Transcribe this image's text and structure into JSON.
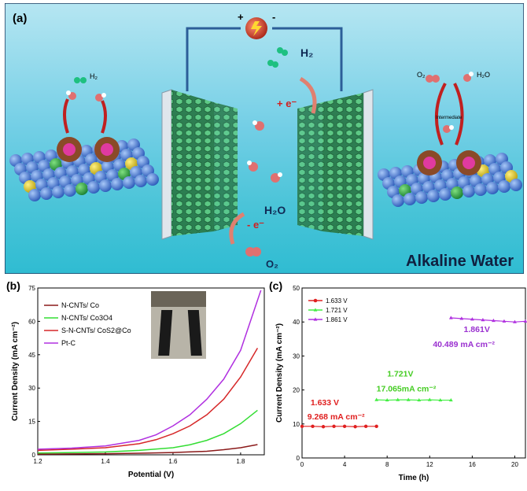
{
  "panel_a": {
    "label": "(a)",
    "battery_plus": "+",
    "battery_minus": "-",
    "left_h2": "H₂",
    "right_o2": "O₂",
    "right_h2o": "H₂O",
    "intermediate": "Intermediate",
    "center_h2": "H₂",
    "plus_e": "+ e⁻",
    "minus_e": "- e⁻",
    "center_h2o": "H₂O",
    "center_o2": "O₂",
    "alkaline_water": "Alkaline Water",
    "colors": {
      "sky": "#8fd6ea",
      "water": "#3cc3d6",
      "wire": "#3c70a8"
    }
  },
  "chart_data": [
    {
      "panel": "(b)",
      "type": "line",
      "xlabel": "Potential (V)",
      "ylabel": "Current Density (mA cm⁻²)",
      "xlim": [
        1.2,
        1.87
      ],
      "ylim": [
        0,
        75
      ],
      "xticks": [
        "1.2",
        "1.4",
        "1.6",
        "1.8"
      ],
      "yticks": [
        "0",
        "15",
        "30",
        "45",
        "60",
        "75"
      ],
      "legend_position": "top-left",
      "series": [
        {
          "name": "N-CNTs/ Co",
          "color": "#8b1a1a",
          "x": [
            1.2,
            1.3,
            1.4,
            1.5,
            1.6,
            1.7,
            1.75,
            1.8,
            1.85
          ],
          "y": [
            0.3,
            0.4,
            0.5,
            0.7,
            1.0,
            1.6,
            2.3,
            3.2,
            4.6
          ]
        },
        {
          "name": "N-CNTs/ Co3O4",
          "color": "#33dd33",
          "x": [
            1.2,
            1.3,
            1.4,
            1.5,
            1.6,
            1.65,
            1.7,
            1.75,
            1.8,
            1.85
          ],
          "y": [
            0.8,
            1.0,
            1.3,
            2.0,
            3.2,
            4.5,
            6.5,
            9.5,
            14.0,
            20.0
          ]
        },
        {
          "name": "S-N-CNTs/ CoS2@Co",
          "color": "#d62728",
          "x": [
            1.2,
            1.3,
            1.4,
            1.5,
            1.55,
            1.6,
            1.65,
            1.7,
            1.75,
            1.8,
            1.85
          ],
          "y": [
            2.0,
            2.5,
            3.2,
            5.0,
            6.8,
            9.5,
            13.0,
            18.0,
            25.0,
            35.0,
            48.0
          ]
        },
        {
          "name": "Pt-C",
          "color": "#b030e0",
          "x": [
            1.2,
            1.3,
            1.4,
            1.5,
            1.55,
            1.6,
            1.65,
            1.7,
            1.75,
            1.8,
            1.86
          ],
          "y": [
            2.5,
            3.0,
            4.0,
            6.5,
            9.0,
            13.0,
            18.0,
            25.0,
            34.0,
            47.0,
            74.0
          ]
        }
      ]
    },
    {
      "panel": "(c)",
      "type": "line",
      "xlabel": "Time (h)",
      "ylabel": "Current Density (mA cm⁻²)",
      "xlim": [
        0,
        21
      ],
      "ylim": [
        0,
        50
      ],
      "xticks": [
        "0",
        "4",
        "8",
        "12",
        "16",
        "20"
      ],
      "yticks": [
        "0",
        "10",
        "20",
        "30",
        "40",
        "50"
      ],
      "legend_position": "top-left",
      "series": [
        {
          "name": "1.633 V",
          "color": "#e02020",
          "marker": "circle",
          "x": [
            0,
            1,
            2,
            3,
            4,
            5,
            6,
            7
          ],
          "y": [
            9.3,
            9.3,
            9.2,
            9.3,
            9.3,
            9.2,
            9.3,
            9.3
          ]
        },
        {
          "name": "1.721 V",
          "color": "#44ee44",
          "marker": "triangle",
          "x": [
            7,
            8,
            9,
            10,
            11,
            12,
            13,
            14
          ],
          "y": [
            17.1,
            17.0,
            17.1,
            17.1,
            17.0,
            17.1,
            17.0,
            17.0
          ]
        },
        {
          "name": "1.861 V",
          "color": "#b030e0",
          "marker": "triangle",
          "x": [
            14,
            15,
            16,
            17,
            18,
            19,
            20,
            21
          ],
          "y": [
            41.2,
            41.0,
            40.8,
            40.6,
            40.4,
            40.2,
            40.0,
            40.2
          ]
        }
      ],
      "annotations": [
        {
          "text": "1.633 V",
          "color": "#e02020"
        },
        {
          "text": "9.268 mA cm⁻²",
          "color": "#e02020"
        },
        {
          "text": "1.721V",
          "color": "#44cc22"
        },
        {
          "text": "17.065mA cm⁻²",
          "color": "#44cc22"
        },
        {
          "text": "1.861V",
          "color": "#9a30d0"
        },
        {
          "text": "40.489 mA cm⁻²",
          "color": "#9a30d0"
        }
      ]
    }
  ],
  "panel_b_label": "(b)",
  "panel_c_label": "(c)"
}
